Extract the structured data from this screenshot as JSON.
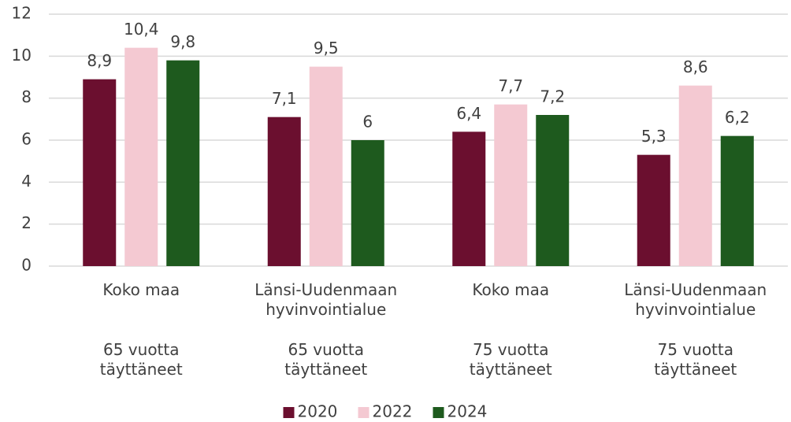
{
  "chart_data": {
    "type": "bar",
    "categories": [
      "Koko maa",
      "Länsi-Uudenmaan hyvinvointialue",
      "Koko maa",
      "Länsi-Uudenmaan hyvinvointialue"
    ],
    "groups": [
      "65 vuotta täyttäneet",
      "65 vuotta täyttäneet",
      "75 vuotta täyttäneet",
      "75 vuotta täyttäneet"
    ],
    "series": [
      {
        "name": "2020",
        "color": "#6b0f2f",
        "values": [
          8.9,
          7.1,
          6.4,
          5.3
        ],
        "value_labels": [
          "8,9",
          "7,1",
          "6,4",
          "5,3"
        ]
      },
      {
        "name": "2022",
        "color": "#f4c9d2",
        "values": [
          10.4,
          9.5,
          7.7,
          8.6
        ],
        "value_labels": [
          "10,4",
          "9,5",
          "7,7",
          "8,6"
        ]
      },
      {
        "name": "2024",
        "color": "#1e5a1e",
        "values": [
          9.8,
          6,
          7.2,
          6.2
        ],
        "value_labels": [
          "9,8",
          "6",
          "7,2",
          "6,2"
        ]
      }
    ],
    "ylim": [
      0,
      12
    ],
    "yticks": [
      0,
      2,
      4,
      6,
      8,
      10,
      12
    ],
    "grid": true,
    "legend": "bottom"
  }
}
